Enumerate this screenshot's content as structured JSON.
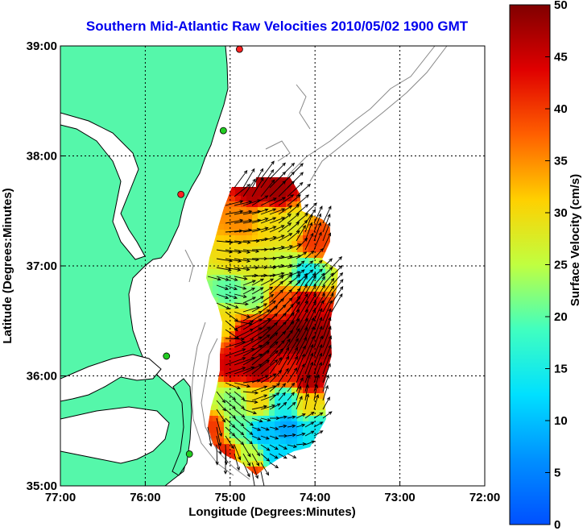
{
  "chart_data": {
    "type": "heatmap",
    "title": "Southern Mid-Atlantic Raw Velocities 2010/05/02 1900 GMT",
    "title_color": "#0000ee",
    "xlabel": "Longitude (Degrees:Minutes)",
    "ylabel": "Latitude (Degrees:Minutes)",
    "xlim": [
      -77,
      -72
    ],
    "ylim": [
      35,
      39
    ],
    "x_ticks": [
      -77,
      -76,
      -75,
      -74,
      -73,
      -72
    ],
    "x_tick_labels": [
      "77:00",
      "76:00",
      "75:00",
      "74:00",
      "73:00",
      "72:00"
    ],
    "y_ticks": [
      35,
      36,
      37,
      38,
      39
    ],
    "y_tick_labels": [
      "35:00",
      "36:00",
      "37:00",
      "38:00",
      "39:00"
    ],
    "grid": true,
    "colorbar": {
      "label": "Surface Velocity (cm/s)",
      "range": [
        0,
        50
      ],
      "ticks": [
        0,
        5,
        10,
        15,
        20,
        25,
        30,
        35,
        40,
        45,
        50
      ],
      "tick_labels": [
        "0",
        "5",
        "10",
        "15",
        "20",
        "25",
        "30",
        "35",
        "40",
        "45",
        "50"
      ],
      "colormap": "jet"
    },
    "land_color": "#55f7aa",
    "vector_color": "#000000",
    "stations": [
      {
        "lon": -74.89,
        "lat": 38.97,
        "color": "#ff2222"
      },
      {
        "lon": -75.08,
        "lat": 38.23,
        "color": "#22cc22"
      },
      {
        "lon": -75.58,
        "lat": 37.65,
        "color": "#ff2222"
      },
      {
        "lon": -75.75,
        "lat": 36.18,
        "color": "#22cc22"
      },
      {
        "lon": -75.48,
        "lat": 35.29,
        "color": "#22cc22"
      }
    ],
    "velocity_field": [
      {
        "lon": -74.75,
        "lat": 37.7,
        "speed": 47,
        "dir": 60
      },
      {
        "lon": -74.5,
        "lat": 37.7,
        "speed": 48,
        "dir": 45
      },
      {
        "lon": -74.9,
        "lat": 37.45,
        "speed": 35,
        "dir": 10
      },
      {
        "lon": -74.6,
        "lat": 37.45,
        "speed": 30,
        "dir": 20
      },
      {
        "lon": -74.3,
        "lat": 37.4,
        "speed": 28,
        "dir": 40
      },
      {
        "lon": -74.05,
        "lat": 37.25,
        "speed": 40,
        "dir": 70
      },
      {
        "lon": -75.0,
        "lat": 37.1,
        "speed": 30,
        "dir": -10
      },
      {
        "lon": -74.7,
        "lat": 37.0,
        "speed": 28,
        "dir": 0
      },
      {
        "lon": -74.4,
        "lat": 37.0,
        "speed": 25,
        "dir": 10
      },
      {
        "lon": -74.15,
        "lat": 36.95,
        "speed": 14,
        "dir": 40
      },
      {
        "lon": -75.05,
        "lat": 36.8,
        "speed": 20,
        "dir": -20
      },
      {
        "lon": -74.75,
        "lat": 36.75,
        "speed": 22,
        "dir": 30
      },
      {
        "lon": -74.45,
        "lat": 36.7,
        "speed": 38,
        "dir": 45
      },
      {
        "lon": -74.15,
        "lat": 36.7,
        "speed": 45,
        "dir": 60
      },
      {
        "lon": -75.1,
        "lat": 36.5,
        "speed": 30,
        "dir": -40
      },
      {
        "lon": -74.85,
        "lat": 36.4,
        "speed": 45,
        "dir": 30
      },
      {
        "lon": -74.55,
        "lat": 36.4,
        "speed": 50,
        "dir": 45
      },
      {
        "lon": -74.25,
        "lat": 36.4,
        "speed": 50,
        "dir": 60
      },
      {
        "lon": -74.0,
        "lat": 36.35,
        "speed": 48,
        "dir": 70
      },
      {
        "lon": -75.0,
        "lat": 36.1,
        "speed": 45,
        "dir": 20
      },
      {
        "lon": -74.7,
        "lat": 36.1,
        "speed": 48,
        "dir": 40
      },
      {
        "lon": -74.4,
        "lat": 36.05,
        "speed": 42,
        "dir": 60
      },
      {
        "lon": -74.1,
        "lat": 36.0,
        "speed": 47,
        "dir": 70
      },
      {
        "lon": -75.3,
        "lat": 35.85,
        "speed": 25,
        "dir": -60
      },
      {
        "lon": -75.0,
        "lat": 35.8,
        "speed": 22,
        "dir": -40
      },
      {
        "lon": -74.7,
        "lat": 35.8,
        "speed": 30,
        "dir": 20
      },
      {
        "lon": -74.4,
        "lat": 35.8,
        "speed": 15,
        "dir": 50
      },
      {
        "lon": -74.1,
        "lat": 35.75,
        "speed": 30,
        "dir": 80
      },
      {
        "lon": -75.25,
        "lat": 35.55,
        "speed": 40,
        "dir": -80
      },
      {
        "lon": -74.95,
        "lat": 35.55,
        "speed": 20,
        "dir": -40
      },
      {
        "lon": -74.65,
        "lat": 35.5,
        "speed": 10,
        "dir": -20
      },
      {
        "lon": -74.35,
        "lat": 35.55,
        "speed": 8,
        "dir": 10
      },
      {
        "lon": -74.05,
        "lat": 35.55,
        "speed": 14,
        "dir": 30
      },
      {
        "lon": -75.1,
        "lat": 35.3,
        "speed": 42,
        "dir": -90
      },
      {
        "lon": -74.8,
        "lat": 35.3,
        "speed": 25,
        "dir": -60
      },
      {
        "lon": -74.5,
        "lat": 35.3,
        "speed": 12,
        "dir": -30
      },
      {
        "lon": -74.75,
        "lat": 35.12,
        "speed": 40,
        "dir": -80
      }
    ]
  }
}
